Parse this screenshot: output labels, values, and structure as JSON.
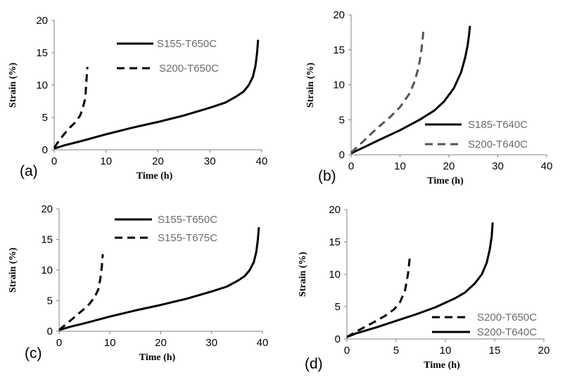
{
  "chart_data": [
    {
      "type": "line",
      "panel_label": "(a)",
      "xlabel": "Time (h)",
      "ylabel": "Strain (%)",
      "xlim": [
        0,
        40
      ],
      "ylim": [
        0,
        20
      ],
      "xticks": [
        "0",
        "10",
        "20",
        "30",
        "40"
      ],
      "yticks": [
        "0",
        "5",
        "10",
        "15",
        "20"
      ],
      "grid": false,
      "legend_position": "top-right",
      "series": [
        {
          "name": "S155-T650C",
          "style": "solid",
          "color": "#000000",
          "x": [
            0,
            2,
            5,
            10,
            15,
            20,
            25,
            30,
            33,
            35,
            36.5,
            37.5,
            38.3,
            38.8,
            39.1,
            39.3
          ],
          "y": [
            0.2,
            0.7,
            1.3,
            2.4,
            3.4,
            4.3,
            5.3,
            6.5,
            7.3,
            8.2,
            9.0,
            10.0,
            11.3,
            13.0,
            15.0,
            17.0
          ]
        },
        {
          "name": "S200-T650C",
          "style": "dashed",
          "color": "#000000",
          "x": [
            0,
            1,
            2,
            3,
            4,
            5,
            5.5,
            6,
            6.2,
            6.4
          ],
          "y": [
            0.3,
            1.5,
            2.5,
            3.4,
            4.2,
            5.3,
            6.4,
            8.0,
            10.5,
            12.8
          ]
        }
      ]
    },
    {
      "type": "line",
      "panel_label": "(b)",
      "xlabel": "Time (h)",
      "ylabel": "Strain (%)",
      "xlim": [
        0,
        40
      ],
      "ylim": [
        0,
        20
      ],
      "xticks": [
        "0",
        "10",
        "20",
        "30",
        "40"
      ],
      "yticks": [
        "0",
        "5",
        "10",
        "15",
        "20"
      ],
      "grid": false,
      "legend_position": "bottom-right",
      "series": [
        {
          "name": "S185-T640C",
          "style": "solid",
          "color": "#000000",
          "x": [
            0,
            3,
            6,
            10,
            14,
            17,
            19,
            21,
            22.5,
            23.3,
            23.8,
            24.1,
            24.3
          ],
          "y": [
            0.2,
            1.2,
            2.2,
            3.5,
            5.0,
            6.3,
            7.6,
            9.5,
            11.8,
            13.8,
            15.5,
            17.0,
            18.4
          ]
        },
        {
          "name": "S200-T640C",
          "style": "dashed",
          "color": "#555555",
          "x": [
            0,
            2,
            5,
            8,
            10,
            12,
            13,
            13.8,
            14.3,
            14.6,
            14.8
          ],
          "y": [
            0.3,
            1.6,
            3.6,
            5.4,
            6.8,
            8.8,
            10.5,
            12.5,
            14.5,
            16.3,
            18.0
          ]
        }
      ]
    },
    {
      "type": "line",
      "panel_label": "(c)",
      "xlabel": "Time (h)",
      "ylabel": "Strain (%)",
      "xlim": [
        0,
        40
      ],
      "ylim": [
        0,
        20
      ],
      "xticks": [
        "0",
        "10",
        "20",
        "30",
        "40"
      ],
      "yticks": [
        "0",
        "5",
        "10",
        "15",
        "20"
      ],
      "grid": false,
      "legend_position": "top-right",
      "series": [
        {
          "name": "S155-T650C",
          "style": "solid",
          "color": "#000000",
          "x": [
            0,
            2,
            5,
            10,
            15,
            20,
            25,
            30,
            33,
            35,
            36.5,
            37.5,
            38.3,
            38.8,
            39.1,
            39.3
          ],
          "y": [
            0.2,
            0.7,
            1.3,
            2.4,
            3.4,
            4.3,
            5.3,
            6.5,
            7.3,
            8.2,
            9.0,
            10.0,
            11.3,
            13.0,
            15.0,
            17.0
          ]
        },
        {
          "name": "S155-T675C",
          "style": "dashed",
          "color": "#000000",
          "x": [
            0,
            1,
            2,
            3,
            4,
            5,
            6,
            7,
            7.7,
            8.1,
            8.4,
            8.6
          ],
          "y": [
            0.2,
            0.9,
            1.6,
            2.3,
            3.0,
            3.7,
            4.5,
            5.6,
            6.8,
            8.5,
            10.5,
            12.6
          ]
        }
      ]
    },
    {
      "type": "line",
      "panel_label": "(d)",
      "xlabel": "Time (h)",
      "ylabel": "Strain (%)",
      "xlim": [
        0,
        20
      ],
      "ylim": [
        0,
        20
      ],
      "xticks": [
        "0",
        "5",
        "10",
        "15",
        "20"
      ],
      "yticks": [
        "0",
        "5",
        "10",
        "15",
        "20"
      ],
      "grid": false,
      "legend_position": "bottom-right",
      "series": [
        {
          "name": "S200-T650C",
          "style": "dashed",
          "color": "#000000",
          "x": [
            0,
            1,
            2,
            3,
            4,
            4.8,
            5.4,
            5.9,
            6.2,
            6.4
          ],
          "y": [
            0.3,
            1.2,
            2.0,
            2.8,
            3.7,
            4.6,
            5.7,
            7.5,
            10.0,
            12.8
          ]
        },
        {
          "name": "S200-T640C",
          "style": "solid",
          "color": "#000000",
          "x": [
            0,
            1,
            3,
            5,
            7,
            9,
            11,
            12,
            13,
            13.7,
            14.2,
            14.5,
            14.7,
            14.8
          ],
          "y": [
            0.3,
            0.9,
            1.8,
            2.8,
            3.8,
            4.9,
            6.3,
            7.2,
            8.6,
            10.0,
            11.8,
            13.8,
            15.8,
            18.0
          ]
        }
      ]
    }
  ]
}
